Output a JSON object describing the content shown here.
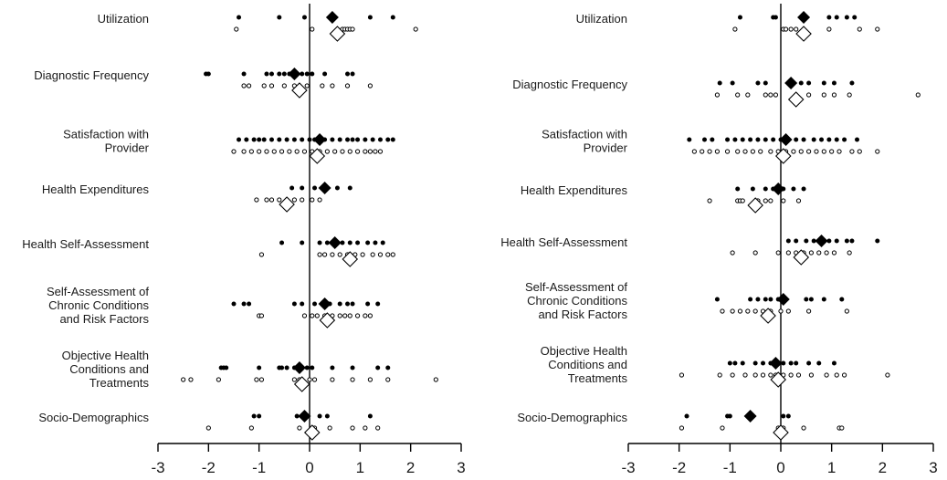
{
  "chart_data": [
    {
      "type": "scatter",
      "title": "",
      "xlabel": "",
      "ylabel": "",
      "xlim": [
        -3,
        3
      ],
      "xticks": [
        -3,
        -2,
        -1,
        0,
        1,
        2,
        3
      ],
      "tick_labels": [
        "-3",
        "-2",
        "-1",
        "0",
        "1",
        "2",
        "3"
      ],
      "grid": false,
      "vertical_reference_line": 0,
      "rows": [
        {
          "label": [
            "Utilization"
          ],
          "filled": [
            -1.4,
            -0.6,
            -0.1,
            0.5,
            1.2,
            1.65
          ],
          "open": [
            -1.45,
            0.05,
            0.65,
            0.7,
            0.75,
            0.8,
            0.85,
            2.1
          ],
          "filled_mean": 0.45,
          "open_mean": 0.55
        },
        {
          "label": [
            "Diagnostic Frequency"
          ],
          "filled": [
            -2.05,
            -2.0,
            -1.3,
            -0.85,
            -0.75,
            -0.6,
            -0.5,
            -0.4,
            -0.3,
            -0.15,
            -0.05,
            0.05,
            0.3,
            0.75,
            0.85
          ],
          "open": [
            -1.3,
            -1.2,
            -0.9,
            -0.75,
            -0.5,
            -0.3,
            -0.2,
            -0.05,
            0.25,
            0.45,
            0.75,
            1.2
          ],
          "filled_mean": -0.3,
          "open_mean": -0.2
        },
        {
          "label": [
            "Satisfaction with",
            "Provider"
          ],
          "filled": [
            -1.4,
            -1.25,
            -1.1,
            -1.0,
            -0.9,
            -0.75,
            -0.6,
            -0.45,
            -0.3,
            -0.15,
            0.0,
            0.1,
            0.3,
            0.45,
            0.6,
            0.75,
            0.85,
            0.95,
            1.1,
            1.25,
            1.4,
            1.55,
            1.65
          ],
          "open": [
            -1.5,
            -1.3,
            -1.15,
            -1.0,
            -0.85,
            -0.7,
            -0.55,
            -0.4,
            -0.25,
            -0.1,
            0.05,
            0.2,
            0.35,
            0.5,
            0.65,
            0.8,
            0.95,
            1.1,
            1.2,
            1.3,
            1.4
          ],
          "filled_mean": 0.2,
          "open_mean": 0.15
        },
        {
          "label": [
            "Health Expenditures"
          ],
          "filled": [
            -0.35,
            -0.15,
            0.1,
            0.25,
            0.35,
            0.55,
            0.8
          ],
          "open": [
            -1.05,
            -0.85,
            -0.75,
            -0.6,
            -0.45,
            -0.3,
            -0.15,
            0.05,
            0.2
          ],
          "filled_mean": 0.3,
          "open_mean": -0.45
        },
        {
          "label": [
            "Health Self-Assessment"
          ],
          "filled": [
            -0.55,
            -0.15,
            0.2,
            0.35,
            0.55,
            0.65,
            0.8,
            0.95,
            1.15,
            1.3,
            1.45
          ],
          "open": [
            -0.95,
            0.2,
            0.3,
            0.45,
            0.6,
            0.75,
            0.9,
            1.05,
            1.25,
            1.4,
            1.55,
            1.65
          ],
          "filled_mean": 0.5,
          "open_mean": 0.8
        },
        {
          "label": [
            "Self-Assessment of",
            "Chronic Conditions",
            "and Risk Factors"
          ],
          "filled": [
            -1.5,
            -1.3,
            -1.2,
            -0.3,
            -0.15,
            0.1,
            0.25,
            0.4,
            0.6,
            0.75,
            0.85,
            1.15,
            1.35
          ],
          "open": [
            -1.0,
            -0.95,
            -0.1,
            0.05,
            0.15,
            0.3,
            0.45,
            0.6,
            0.7,
            0.8,
            0.95,
            1.1,
            1.2
          ],
          "filled_mean": 0.3,
          "open_mean": 0.35
        },
        {
          "label": [
            "Objective Health",
            "Conditions and",
            "Treatments"
          ],
          "filled": [
            -1.75,
            -1.7,
            -1.65,
            -1.0,
            -0.6,
            -0.55,
            -0.45,
            -0.3,
            -0.2,
            -0.05,
            0.05,
            0.45,
            0.85,
            1.35,
            1.55
          ],
          "open": [
            -2.5,
            -2.35,
            -1.8,
            -1.05,
            -0.95,
            -0.3,
            -0.2,
            0.0,
            0.1,
            0.45,
            0.85,
            1.2,
            1.55,
            2.5
          ],
          "filled_mean": -0.2,
          "open_mean": -0.15
        },
        {
          "label": [
            "Socio-Demographics"
          ],
          "filled": [
            -1.1,
            -1.0,
            -0.25,
            -0.05,
            0.2,
            0.35,
            1.2
          ],
          "open": [
            -2.0,
            -1.15,
            -0.2,
            0.1,
            0.4,
            0.85,
            1.1,
            1.35
          ],
          "filled_mean": -0.1,
          "open_mean": 0.05
        }
      ]
    },
    {
      "type": "scatter",
      "title": "",
      "xlabel": "",
      "ylabel": "",
      "xlim": [
        -3,
        3
      ],
      "xticks": [
        -3,
        -2,
        -1,
        0,
        1,
        2,
        3
      ],
      "tick_labels": [
        "-3",
        "-2",
        "-1",
        "0",
        "1",
        "2",
        "3"
      ],
      "grid": false,
      "vertical_reference_line": 0,
      "rows": [
        {
          "label": [
            "Utilization"
          ],
          "filled": [
            -0.8,
            -0.15,
            -0.1,
            0.45,
            0.95,
            1.1,
            1.3,
            1.45
          ],
          "open": [
            -0.9,
            0.05,
            0.1,
            0.2,
            0.3,
            0.95,
            1.55,
            1.9
          ],
          "filled_mean": 0.45,
          "open_mean": 0.45
        },
        {
          "label": [
            "Diagnostic Frequency"
          ],
          "filled": [
            -1.2,
            -0.95,
            -0.45,
            -0.3,
            0.15,
            0.25,
            0.4,
            0.55,
            0.85,
            1.05,
            1.4
          ],
          "open": [
            -1.25,
            -0.85,
            -0.65,
            -0.3,
            -0.2,
            -0.1,
            0.3,
            0.55,
            0.85,
            1.05,
            1.35,
            2.7
          ],
          "filled_mean": 0.2,
          "open_mean": 0.3
        },
        {
          "label": [
            "Satisfaction with",
            "Provider"
          ],
          "filled": [
            -1.8,
            -1.5,
            -1.35,
            -1.05,
            -0.9,
            -0.75,
            -0.6,
            -0.45,
            -0.3,
            -0.15,
            0.0,
            0.15,
            0.3,
            0.45,
            0.65,
            0.8,
            0.95,
            1.1,
            1.25,
            1.5
          ],
          "open": [
            -1.7,
            -1.55,
            -1.4,
            -1.25,
            -1.05,
            -0.85,
            -0.7,
            -0.55,
            -0.4,
            -0.2,
            -0.05,
            0.1,
            0.25,
            0.4,
            0.55,
            0.7,
            0.85,
            1.0,
            1.15,
            1.4,
            1.55,
            1.9
          ],
          "filled_mean": 0.1,
          "open_mean": 0.05
        },
        {
          "label": [
            "Health Expenditures"
          ],
          "filled": [
            -0.85,
            -0.55,
            -0.3,
            -0.15,
            0.05,
            0.25,
            0.45
          ],
          "open": [
            -1.4,
            -0.85,
            -0.8,
            -0.75,
            -0.45,
            -0.3,
            -0.2,
            0.05,
            0.35
          ],
          "filled_mean": -0.05,
          "open_mean": -0.5
        },
        {
          "label": [
            "Health Self-Assessment"
          ],
          "filled": [
            0.15,
            0.3,
            0.5,
            0.65,
            0.8,
            0.95,
            1.1,
            1.3,
            1.4,
            1.9
          ],
          "open": [
            -0.95,
            -0.5,
            -0.05,
            0.15,
            0.3,
            0.45,
            0.6,
            0.75,
            0.9,
            1.05,
            1.35
          ],
          "filled_mean": 0.8,
          "open_mean": 0.4
        },
        {
          "label": [
            "Self-Assessment of",
            "Chronic Conditions",
            "and Risk Factors"
          ],
          "filled": [
            -1.25,
            -0.6,
            -0.45,
            -0.3,
            -0.2,
            -0.05,
            0.1,
            0.5,
            0.6,
            0.85,
            1.2
          ],
          "open": [
            -1.15,
            -0.95,
            -0.8,
            -0.65,
            -0.5,
            -0.35,
            -0.2,
            0.0,
            0.15,
            0.55,
            1.3
          ],
          "filled_mean": 0.05,
          "open_mean": -0.25
        },
        {
          "label": [
            "Objective Health",
            "Conditions and",
            "Treatments"
          ],
          "filled": [
            -1.0,
            -0.9,
            -0.75,
            -0.5,
            -0.35,
            -0.2,
            -0.05,
            0.05,
            0.2,
            0.3,
            0.55,
            0.75,
            1.05
          ],
          "open": [
            -1.95,
            -1.2,
            -0.95,
            -0.7,
            -0.5,
            -0.35,
            -0.2,
            -0.1,
            0.05,
            0.2,
            0.35,
            0.6,
            0.9,
            1.1,
            1.25,
            2.1
          ],
          "filled_mean": -0.1,
          "open_mean": -0.05
        },
        {
          "label": [
            "Socio-Demographics"
          ],
          "filled": [
            -1.85,
            -1.05,
            -1.0,
            -0.6,
            0.05,
            0.15
          ],
          "open": [
            -1.95,
            -1.15,
            -0.05,
            0.0,
            0.05,
            0.45,
            1.15,
            1.2
          ],
          "filled_mean": -0.6,
          "open_mean": 0.0
        }
      ]
    }
  ]
}
